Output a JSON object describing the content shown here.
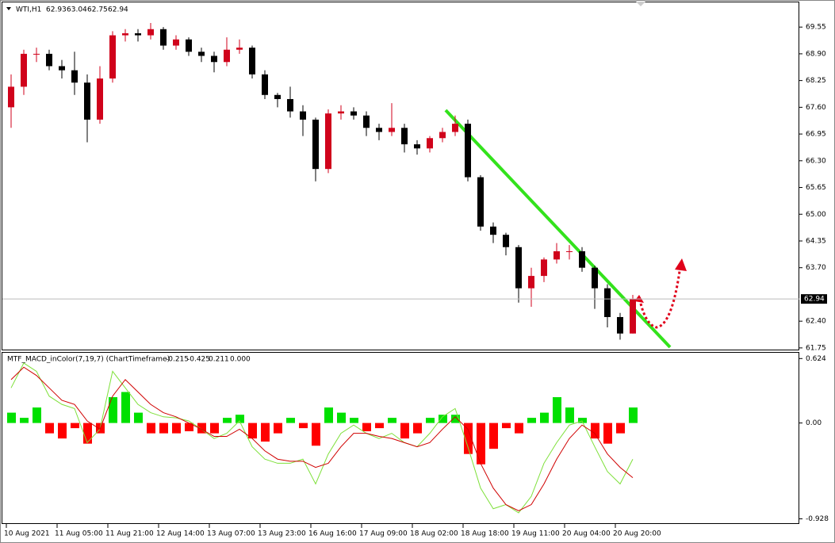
{
  "chart_data": [
    {
      "type": "candlestick",
      "title": "WTI,H1",
      "title_values": [
        62.93,
        63.04,
        62.75,
        62.94
      ],
      "last_price": 62.94,
      "up_color": "#d0021b",
      "down_color": "#000000",
      "open": [
        67.6,
        68.1,
        68.9,
        68.9,
        68.6,
        68.5,
        68.2,
        67.3,
        68.3,
        69.35,
        69.4,
        69.35,
        69.5,
        69.1,
        69.25,
        68.95,
        68.85,
        68.7,
        69.0,
        69.05,
        68.4,
        67.9,
        67.8,
        67.5,
        67.3,
        66.1,
        67.45,
        67.5,
        67.4,
        67.1,
        67.0,
        67.1,
        66.7,
        66.6,
        66.85,
        67.0,
        67.2,
        65.9,
        64.7,
        64.5,
        64.2,
        63.2,
        63.5,
        63.9,
        64.1,
        64.1,
        63.7,
        63.2,
        62.5,
        62.1
      ],
      "high": [
        68.4,
        69.0,
        69.05,
        69.0,
        68.75,
        68.95,
        68.4,
        68.6,
        69.45,
        69.5,
        69.5,
        69.65,
        69.55,
        69.35,
        69.3,
        69.05,
        68.95,
        69.3,
        69.25,
        69.1,
        68.5,
        67.95,
        68.1,
        67.65,
        67.35,
        67.55,
        67.65,
        67.6,
        67.5,
        67.2,
        67.7,
        67.2,
        66.8,
        66.9,
        67.1,
        67.4,
        67.3,
        65.95,
        64.8,
        64.55,
        64.25,
        63.7,
        63.95,
        64.3,
        64.25,
        64.2,
        63.75,
        63.3,
        62.6,
        63.04
      ],
      "low": [
        67.1,
        67.9,
        68.7,
        68.5,
        68.3,
        67.9,
        66.75,
        67.2,
        68.2,
        69.2,
        69.2,
        69.25,
        69.0,
        69.0,
        68.85,
        68.7,
        68.45,
        68.6,
        68.9,
        68.3,
        67.8,
        67.6,
        67.35,
        66.9,
        65.8,
        66.0,
        67.3,
        67.3,
        66.9,
        66.8,
        66.9,
        66.5,
        66.45,
        66.5,
        66.75,
        66.9,
        65.8,
        64.6,
        64.3,
        64.0,
        62.85,
        62.75,
        63.35,
        63.8,
        63.9,
        63.6,
        62.7,
        62.25,
        61.95,
        62.1
      ],
      "close": [
        68.1,
        68.9,
        68.9,
        68.6,
        68.5,
        68.2,
        67.3,
        68.3,
        69.35,
        69.4,
        69.35,
        69.5,
        69.1,
        69.25,
        68.95,
        68.85,
        68.7,
        69.0,
        69.05,
        68.4,
        67.9,
        67.8,
        67.5,
        67.3,
        66.1,
        67.45,
        67.5,
        67.4,
        67.1,
        67.0,
        67.1,
        66.7,
        66.6,
        66.85,
        67.0,
        67.2,
        65.9,
        64.7,
        64.5,
        64.2,
        63.2,
        63.5,
        63.9,
        64.1,
        64.1,
        63.7,
        63.2,
        62.5,
        62.1,
        62.94
      ],
      "ylim": [
        61.69,
        70.17
      ],
      "yticks": [
        69.55,
        {
          "value": 68.9,
          "label": "68.90"
        },
        68.25,
        {
          "value": 67.6,
          "label": "67.60"
        },
        66.95,
        {
          "value": 66.3,
          "label": "66.30"
        },
        65.65,
        {
          "value": 65,
          "label": "65.00"
        },
        64.35,
        {
          "value": 63.7,
          "label": "63.70"
        },
        {
          "value": 62.4,
          "label": "62.40"
        },
        61.75
      ],
      "xticks": [
        {
          "value": 0,
          "label": "10 Aug 2021"
        },
        {
          "value": 4,
          "label": "11 Aug 05:00"
        },
        {
          "value": 8,
          "label": "11 Aug 21:00"
        },
        {
          "value": 12,
          "label": "12 Aug 14:00"
        },
        {
          "value": 16,
          "label": "13 Aug 07:00"
        },
        {
          "value": 20,
          "label": "13 Aug 23:00"
        },
        {
          "value": 24,
          "label": "16 Aug 16:00"
        },
        {
          "value": 28,
          "label": "17 Aug 09:00"
        },
        {
          "value": 32,
          "label": "18 Aug 02:00"
        },
        {
          "value": 36,
          "label": "18 Aug 18:00"
        },
        {
          "value": 40,
          "label": "19 Aug 11:00"
        },
        {
          "value": 44,
          "label": "20 Aug 04:00"
        },
        {
          "value": 48,
          "label": "20 Aug 20:00"
        }
      ]
    },
    {
      "type": "macd",
      "title": "MTF_MACD_inColor(7,19,7) (ChartTimeframe)",
      "title_values": [
        "-0.215",
        "-0.425",
        "0.211",
        "0.000"
      ],
      "up_color": "#00e000",
      "down_color": "#ff0000",
      "histogram": [
        0.1,
        0.05,
        0.15,
        -0.1,
        -0.15,
        -0.05,
        -0.2,
        -0.1,
        0.25,
        0.3,
        0.1,
        -0.1,
        -0.1,
        -0.1,
        -0.08,
        -0.1,
        -0.1,
        0.05,
        0.08,
        -0.15,
        -0.18,
        -0.1,
        0.05,
        -0.05,
        -0.22,
        0.15,
        0.1,
        0.05,
        -0.08,
        -0.05,
        0.05,
        -0.15,
        -0.1,
        0.05,
        0.08,
        0.08,
        -0.3,
        -0.4,
        -0.25,
        -0.05,
        -0.1,
        0.05,
        0.1,
        0.25,
        0.15,
        0.05,
        -0.15,
        -0.2,
        -0.1,
        0.15
      ],
      "series": [
        {
          "color": "#7ee03a",
          "values": [
            0.34,
            0.58,
            0.5,
            0.26,
            0.18,
            0.14,
            -0.19,
            -0.06,
            0.5,
            0.34,
            0.18,
            0.1,
            0.06,
            0.05,
            0.02,
            -0.06,
            -0.15,
            -0.1,
            0.02,
            -0.23,
            -0.35,
            -0.39,
            -0.39,
            -0.35,
            -0.59,
            -0.3,
            -0.1,
            -0.02,
            -0.1,
            -0.15,
            -0.1,
            -0.19,
            -0.23,
            -0.1,
            0.06,
            0.14,
            -0.23,
            -0.63,
            -0.83,
            -0.79,
            -0.87,
            -0.71,
            -0.39,
            -0.19,
            -0.02,
            0.02,
            -0.23,
            -0.47,
            -0.59,
            -0.35
          ]
        },
        {
          "color": "#d00000",
          "values": [
            0.42,
            0.54,
            0.46,
            0.34,
            0.22,
            0.18,
            0.02,
            -0.06,
            0.26,
            0.42,
            0.3,
            0.18,
            0.1,
            0.06,
            0,
            -0.06,
            -0.13,
            -0.13,
            -0.06,
            -0.15,
            -0.27,
            -0.35,
            -0.37,
            -0.37,
            -0.43,
            -0.39,
            -0.23,
            -0.1,
            -0.1,
            -0.13,
            -0.15,
            -0.19,
            -0.23,
            -0.19,
            -0.06,
            0.06,
            -0.06,
            -0.39,
            -0.63,
            -0.79,
            -0.85,
            -0.79,
            -0.59,
            -0.35,
            -0.15,
            -0.02,
            -0.1,
            -0.3,
            -0.43,
            -0.53
          ]
        }
      ],
      "ylim": [
        -0.97,
        0.68
      ],
      "yticks": [
        0.624,
        {
          "value": 0,
          "label": "0.00"
        },
        -0.928
      ]
    }
  ]
}
